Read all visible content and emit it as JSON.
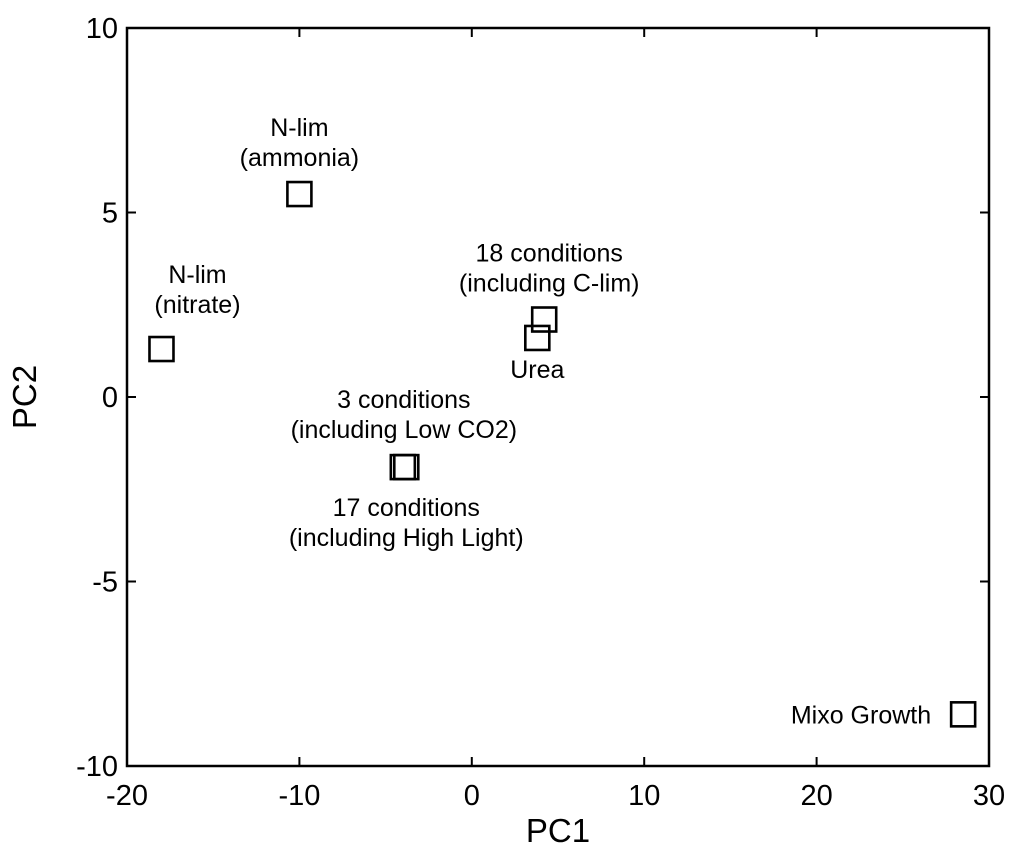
{
  "chart_data": {
    "type": "scatter",
    "title": "",
    "xlabel": "PC1",
    "ylabel": "PC2",
    "xlim": [
      -20,
      30
    ],
    "ylim": [
      -10,
      10
    ],
    "xticks": [
      -20,
      -10,
      0,
      10,
      20,
      30
    ],
    "yticks": [
      -10,
      -5,
      0,
      5,
      10
    ],
    "grid": false,
    "marker": "square",
    "points": [
      {
        "x": -10,
        "y": 5.5,
        "label": [
          "N-lim",
          "(ammonia)"
        ]
      },
      {
        "x": -18,
        "y": 1.3,
        "label": [
          "N-lim",
          "(nitrate)"
        ]
      },
      {
        "x": 4.2,
        "y": 2.1,
        "label": [
          "18 conditions",
          "(including C-lim)"
        ]
      },
      {
        "x": 3.8,
        "y": 1.6,
        "label": [
          "Urea"
        ]
      },
      {
        "x": -4,
        "y": -1.9,
        "label": [
          "3 conditions",
          "(including Low CO2)"
        ]
      },
      {
        "x": -3.8,
        "y": -1.9,
        "label": [
          "17 conditions",
          "(including High Light)"
        ]
      },
      {
        "x": 28.5,
        "y": -8.6,
        "label": [
          "Mixo Growth"
        ]
      }
    ]
  }
}
